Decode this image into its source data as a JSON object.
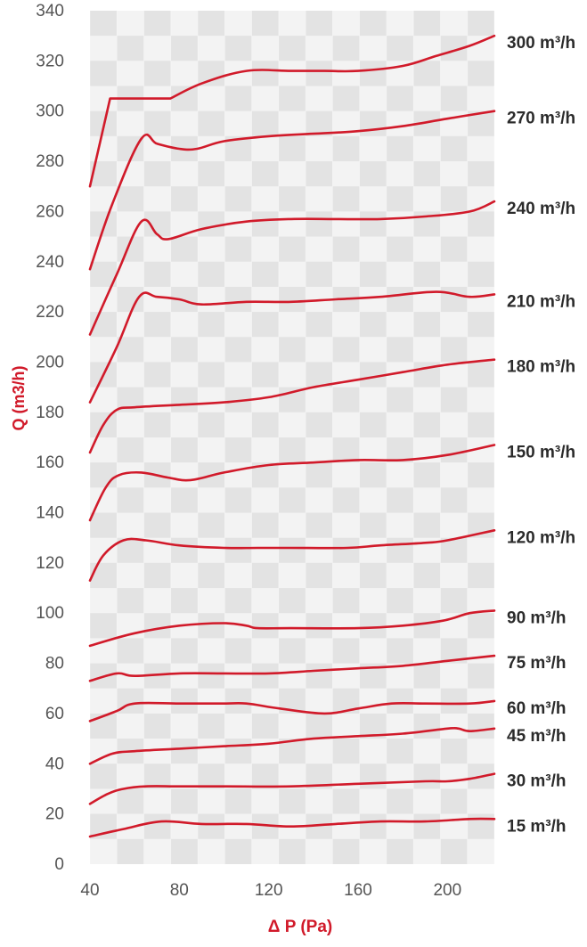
{
  "chart_data": {
    "type": "line",
    "title": "",
    "xlabel": "Δ P (Pa)",
    "ylabel": "Q (m3/h)",
    "xlim": [
      40,
      221
    ],
    "ylim": [
      0,
      340
    ],
    "xticks": [
      "40",
      "80",
      "120",
      "160",
      "200"
    ],
    "yticks": [
      "0",
      "20",
      "40",
      "60",
      "80",
      "100",
      "120",
      "140",
      "160",
      "180",
      "200",
      "220",
      "240",
      "260",
      "280",
      "300",
      "320",
      "340"
    ],
    "grid": true,
    "line_color": "#d11a2a",
    "series": [
      {
        "name": "300 m³/h",
        "x": [
          40,
          49,
          76,
          90,
          110,
          130,
          145,
          160,
          180,
          195,
          210,
          221
        ],
        "y": [
          270,
          305,
          305,
          311,
          316,
          316,
          316,
          316,
          318,
          322,
          326,
          330
        ]
      },
      {
        "name": "270 m³/h",
        "x": [
          40,
          50,
          63,
          70,
          80,
          88,
          100,
          120,
          140,
          160,
          180,
          200,
          221
        ],
        "y": [
          237,
          263,
          289,
          287,
          285,
          285,
          288,
          290,
          291,
          292,
          294,
          297,
          300
        ]
      },
      {
        "name": "240 m³/h",
        "x": [
          40,
          52,
          63,
          70,
          75,
          90,
          110,
          130,
          150,
          170,
          190,
          210,
          221
        ],
        "y": [
          211,
          235,
          256,
          251,
          249,
          253,
          256,
          257,
          257,
          257,
          258,
          260,
          264
        ]
      },
      {
        "name": "210 m³/h",
        "x": [
          40,
          52,
          62,
          70,
          80,
          90,
          110,
          130,
          150,
          170,
          195,
          210,
          221
        ],
        "y": [
          184,
          206,
          226,
          226,
          225,
          223,
          224,
          224,
          225,
          226,
          228,
          226,
          227
        ]
      },
      {
        "name": "180 m³/h",
        "x": [
          40,
          46,
          52,
          60,
          80,
          100,
          120,
          140,
          160,
          180,
          200,
          221
        ],
        "y": [
          164,
          175,
          181,
          182,
          183,
          184,
          186,
          190,
          193,
          196,
          199,
          201
        ]
      },
      {
        "name": "150 m³/h",
        "x": [
          40,
          47,
          53,
          63,
          75,
          85,
          100,
          120,
          140,
          160,
          180,
          200,
          221
        ],
        "y": [
          137,
          150,
          155,
          156,
          154,
          153,
          156,
          159,
          160,
          161,
          161,
          163,
          167
        ]
      },
      {
        "name": "120 m³/h",
        "x": [
          40,
          46,
          55,
          65,
          80,
          100,
          115,
          130,
          155,
          170,
          190,
          200,
          221
        ],
        "y": [
          113,
          123,
          129,
          129,
          127,
          126,
          126,
          126,
          126,
          127,
          128,
          129,
          133
        ]
      },
      {
        "name": "90 m³/h",
        "x": [
          40,
          60,
          80,
          100,
          110,
          115,
          130,
          160,
          180,
          198,
          210,
          221
        ],
        "y": [
          87,
          92,
          95,
          96,
          95,
          94,
          94,
          94,
          95,
          97,
          100,
          101
        ]
      },
      {
        "name": "75 m³/h",
        "x": [
          40,
          52,
          60,
          80,
          100,
          120,
          140,
          160,
          180,
          200,
          221
        ],
        "y": [
          73,
          76,
          75,
          76,
          76,
          76,
          77,
          78,
          79,
          81,
          83
        ]
      },
      {
        "name": "60 m³/h",
        "x": [
          40,
          52,
          60,
          80,
          100,
          110,
          125,
          145,
          160,
          175,
          190,
          210,
          221
        ],
        "y": [
          57,
          61,
          64,
          64,
          64,
          64,
          62,
          60,
          62,
          64,
          64,
          64,
          65
        ]
      },
      {
        "name": "45 m³/h",
        "x": [
          40,
          50,
          60,
          80,
          100,
          120,
          140,
          160,
          180,
          200,
          205,
          210,
          221
        ],
        "y": [
          40,
          44,
          45,
          46,
          47,
          48,
          50,
          51,
          52,
          54,
          54,
          53,
          54
        ]
      },
      {
        "name": "30 m³/h",
        "x": [
          40,
          48,
          55,
          65,
          80,
          100,
          130,
          160,
          190,
          200,
          210,
          221
        ],
        "y": [
          24,
          28,
          30,
          31,
          31,
          31,
          31,
          32,
          33,
          33,
          34,
          36
        ]
      },
      {
        "name": "15 m³/h",
        "x": [
          40,
          55,
          72,
          90,
          110,
          130,
          150,
          170,
          190,
          210,
          221
        ],
        "y": [
          11,
          14,
          17,
          16,
          16,
          15,
          16,
          17,
          17,
          18,
          18
        ]
      }
    ]
  }
}
